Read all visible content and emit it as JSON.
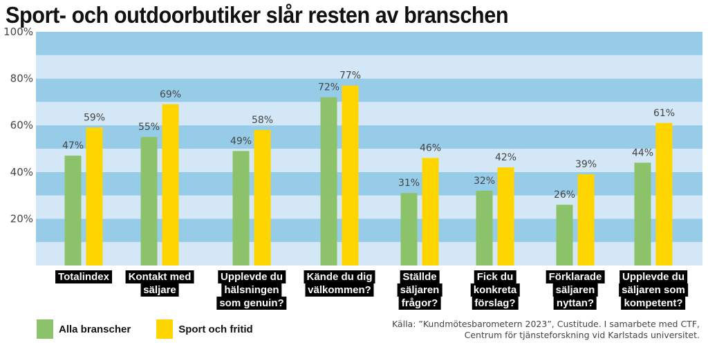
{
  "colors": {
    "band_dark": "#97cce9",
    "band_light": "#d4e7f6",
    "series_1": "#8cc36a",
    "series_2": "#ffd500"
  },
  "chart_data": {
    "type": "bar",
    "title": "Sport- och outdoorbutiker slår resten av branschen",
    "categories": [
      [
        "Totalindex"
      ],
      [
        "Kontakt med",
        "säljare"
      ],
      [
        "Upplevde du",
        "hälsningen",
        "som genuin?"
      ],
      [
        "Kände du dig",
        "välkommen?"
      ],
      [
        "Ställde",
        "säljaren",
        "frågor?"
      ],
      [
        "Fick du",
        "konkreta",
        "förslag?"
      ],
      [
        "Förklarade",
        "säljaren",
        "nyttan?"
      ],
      [
        "Upplevde du",
        "säljaren som",
        "kompetent?"
      ]
    ],
    "series": [
      {
        "name": "Alla branscher",
        "values": [
          47,
          55,
          49,
          72,
          31,
          32,
          26,
          44
        ],
        "labels": [
          "47%",
          "55%",
          "49%",
          "72%",
          "31%",
          "32%",
          "26%",
          "44%"
        ]
      },
      {
        "name": "Sport och fritid",
        "values": [
          59,
          69,
          58,
          77,
          46,
          42,
          39,
          61
        ],
        "labels": [
          "59%",
          "69%",
          "58%",
          "77%",
          "46%",
          "42%",
          "39%",
          "61%"
        ]
      }
    ],
    "ylim": [
      0,
      100
    ],
    "yticks": [
      20,
      40,
      60,
      80,
      100
    ],
    "ytick_labels": [
      "20%",
      "40%",
      "60%",
      "80%",
      "100%"
    ],
    "xlabel": "",
    "ylabel": "",
    "legend_position": "bottom-left"
  },
  "source": {
    "line1": "Källa: ”Kundmötesbarometern 2023”, Custitude. I samarbete med CTF,",
    "line2": "Centrum för tjänsteforskning vid Karlstads universitet."
  }
}
